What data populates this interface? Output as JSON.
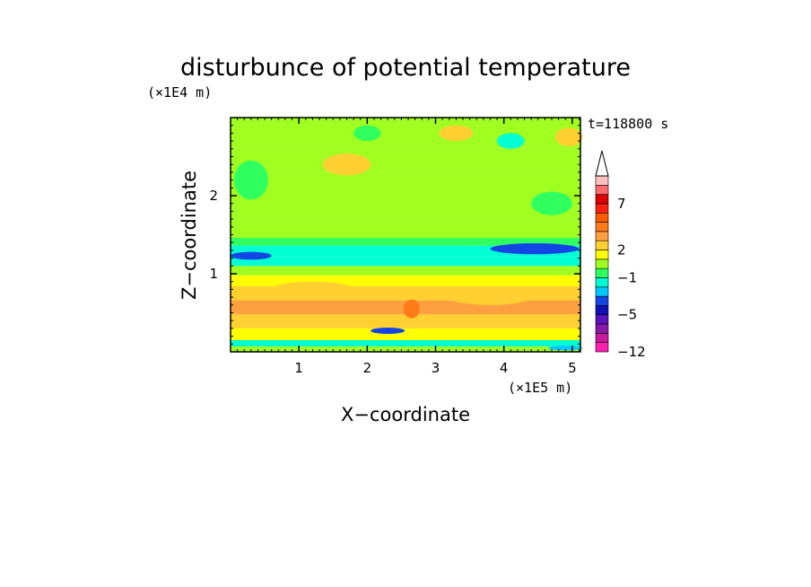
{
  "chart_data": {
    "type": "heatmap",
    "title": "disturbunce of potential temperature",
    "xlabel": "X−coordinate",
    "ylabel": "Z−coordinate",
    "x_unit": "(×1E5 m)",
    "y_unit": "(×1E4 m)",
    "time_label": "t=118800 s",
    "xlim": [
      0,
      5.12
    ],
    "ylim": [
      0,
      3.0
    ],
    "x_ticks": [
      1,
      2,
      3,
      4,
      5
    ],
    "y_ticks": [
      1,
      2
    ],
    "colorbar": {
      "levels": [
        -12,
        -10,
        -8,
        -6,
        -5,
        -4,
        -3,
        -2,
        -1,
        0,
        1,
        2,
        3,
        4,
        5,
        6,
        7,
        8,
        9,
        10
      ],
      "colors": [
        "#ff1fb0",
        "#cc1aa0",
        "#8a18a8",
        "#5a14b8",
        "#1010b8",
        "#1446e6",
        "#00c8ff",
        "#00ffd2",
        "#30ff60",
        "#a0ff20",
        "#ffff00",
        "#ffd030",
        "#ffa040",
        "#ff7a18",
        "#ff5a00",
        "#ff2010",
        "#dd0000",
        "#ff6a6a",
        "#ffc0c0"
      ],
      "labels": [
        "−12",
        "−5",
        "−1",
        "2",
        "7"
      ],
      "extend": "max"
    },
    "bands": [
      {
        "z": [
          0.0,
          0.07
        ],
        "v": 0.3
      },
      {
        "z": [
          0.07,
          0.15
        ],
        "v": -1.5
      },
      {
        "z": [
          0.15,
          0.3
        ],
        "v": 1.2
      },
      {
        "z": [
          0.3,
          0.48
        ],
        "v": 2.4
      },
      {
        "z": [
          0.48,
          0.66
        ],
        "v": 3.2
      },
      {
        "z": [
          0.66,
          0.84
        ],
        "v": 2.1
      },
      {
        "z": [
          0.84,
          0.98
        ],
        "v": 1.0
      },
      {
        "z": [
          0.98,
          1.1
        ],
        "v": 0.2
      },
      {
        "z": [
          1.1,
          1.22
        ],
        "v": -1.2
      },
      {
        "z": [
          1.22,
          1.36
        ],
        "v": -1.6
      },
      {
        "z": [
          1.36,
          1.46
        ],
        "v": -0.5
      },
      {
        "z": [
          1.46,
          1.7
        ],
        "v": 0.4
      },
      {
        "z": [
          1.7,
          2.0
        ],
        "v": 0.9
      },
      {
        "z": [
          2.0,
          2.3
        ],
        "v": 0.6
      },
      {
        "z": [
          2.3,
          2.6
        ],
        "v": 0.4
      },
      {
        "z": [
          2.6,
          3.0
        ],
        "v": 0.7
      }
    ],
    "blobs": [
      {
        "x": 0.3,
        "z": 1.23,
        "rx": 0.3,
        "rz": 0.05,
        "v": -3.5
      },
      {
        "x": 4.45,
        "z": 1.32,
        "rx": 0.65,
        "rz": 0.07,
        "v": -3.5
      },
      {
        "x": 2.3,
        "z": 0.27,
        "rx": 0.25,
        "rz": 0.04,
        "v": -3.5
      },
      {
        "x": 4.9,
        "z": 0.05,
        "rx": 0.25,
        "rz": 0.03,
        "v": -2.5
      },
      {
        "x": 2.65,
        "z": 0.55,
        "rx": 0.12,
        "rz": 0.12,
        "v": 4.0
      },
      {
        "x": 1.7,
        "z": 2.4,
        "rx": 0.35,
        "rz": 0.14,
        "v": 2.8
      },
      {
        "x": 3.3,
        "z": 2.8,
        "rx": 0.25,
        "rz": 0.1,
        "v": 2.3
      },
      {
        "x": 4.95,
        "z": 2.75,
        "rx": 0.2,
        "rz": 0.12,
        "v": 2.3
      },
      {
        "x": 2.0,
        "z": 2.8,
        "rx": 0.2,
        "rz": 0.1,
        "v": -1.0
      },
      {
        "x": 4.1,
        "z": 2.7,
        "rx": 0.2,
        "rz": 0.1,
        "v": -1.2
      },
      {
        "x": 0.3,
        "z": 2.2,
        "rx": 0.25,
        "rz": 0.25,
        "v": -0.6
      },
      {
        "x": 4.7,
        "z": 1.9,
        "rx": 0.3,
        "rz": 0.15,
        "v": -0.8
      },
      {
        "x": 1.2,
        "z": 0.8,
        "rx": 0.6,
        "rz": 0.1,
        "v": 2.8
      },
      {
        "x": 3.8,
        "z": 0.7,
        "rx": 0.6,
        "rz": 0.1,
        "v": 2.6
      }
    ]
  }
}
